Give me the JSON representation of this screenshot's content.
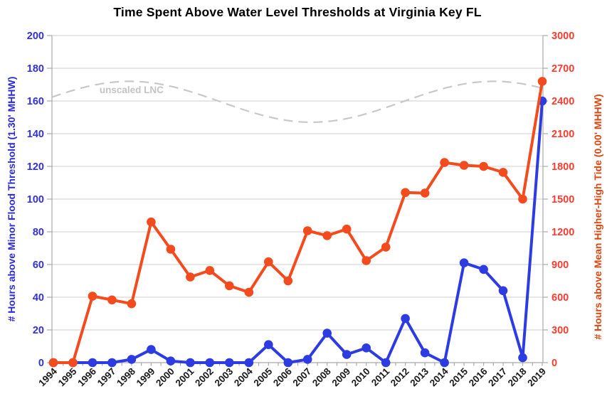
{
  "page_title": "Time Spent Above Water Level Thresholds at Virginia Key FL",
  "chart_data": {
    "type": "line",
    "title": "Time Spent Above Water Level Thresholds at Virginia Key FL",
    "background": "#ffffff",
    "grid": true,
    "legend": false,
    "x": [
      1994,
      1995,
      1996,
      1997,
      1998,
      1999,
      2000,
      2001,
      2002,
      2003,
      2004,
      2005,
      2006,
      2007,
      2008,
      2009,
      2010,
      2011,
      2012,
      2013,
      2014,
      2015,
      2016,
      2017,
      2018,
      2019
    ],
    "x_axis": {
      "tick_labels": [
        "1994",
        "1995",
        "1996",
        "1997",
        "1998",
        "1999",
        "2000",
        "2001",
        "2002",
        "2003",
        "2004",
        "2005",
        "2006",
        "2007",
        "2008",
        "2009",
        "2010",
        "2011",
        "2012",
        "2013",
        "2014",
        "2015",
        "2016",
        "2017",
        "2018",
        "2019"
      ],
      "minor_ticks_per_year": 2,
      "label_color": "#1a1a1a",
      "label_rotation_deg": -45
    },
    "left_axis": {
      "label": "# Hours above Minor Flood Threshold (1.30' MHHW)",
      "min": 0,
      "max": 200,
      "step": 20,
      "tick_labels": [
        "0",
        "20",
        "40",
        "60",
        "80",
        "100",
        "120",
        "140",
        "160",
        "180",
        "200"
      ],
      "tick_color": "#3030e0",
      "label_color": "#2a2ae0"
    },
    "right_axis": {
      "label": "# Hours above Mean Higher-High Tide (0.00' MHHW)",
      "min": 0,
      "max": 3000,
      "step": 300,
      "tick_labels": [
        "0",
        "300",
        "600",
        "900",
        "1200",
        "1500",
        "1800",
        "2100",
        "2400",
        "2700",
        "3000"
      ],
      "tick_color": "#f93b30",
      "label_color": "#de4612"
    },
    "series": [
      {
        "name": "hours-above-minor-flood-threshold",
        "label": "# Hours above Minor Flood Threshold (1.30' MHHW)",
        "axis": "left",
        "color": "#2c3ce2",
        "marker": "circle",
        "values": [
          0,
          0,
          0,
          0,
          2,
          8,
          1,
          0,
          0,
          0,
          0,
          11,
          0,
          2,
          18,
          5,
          9,
          0,
          27,
          6,
          0,
          61,
          57,
          44,
          3,
          160
        ]
      },
      {
        "name": "hours-above-mean-higher-high-tide",
        "label": "# Hours above Mean Higher-High Tide (0.00' MHHW)",
        "axis": "right",
        "color": "#f44b1e",
        "marker": "circle",
        "values": [
          0,
          0,
          610,
          575,
          540,
          1290,
          1040,
          785,
          845,
          705,
          645,
          925,
          750,
          1210,
          1165,
          1225,
          935,
          1060,
          1560,
          1555,
          1835,
          1810,
          1800,
          1745,
          1500,
          2580
        ]
      },
      {
        "name": "unscaled-lnc",
        "label": "unscaled LNC",
        "axis": "left",
        "curve": "cosine",
        "color": "#c8c8c8",
        "label_color": "#c4c4c4",
        "midline": 159.5,
        "amplitude": 12.5,
        "peak_year": 1997.9,
        "period_years": 18.61,
        "label_anchor": {
          "year": 1998,
          "value": 166.5
        }
      }
    ],
    "style": {
      "grid_color": "#cccccc",
      "axis_color": "#a9a9a9",
      "title_color": "#000000"
    }
  }
}
